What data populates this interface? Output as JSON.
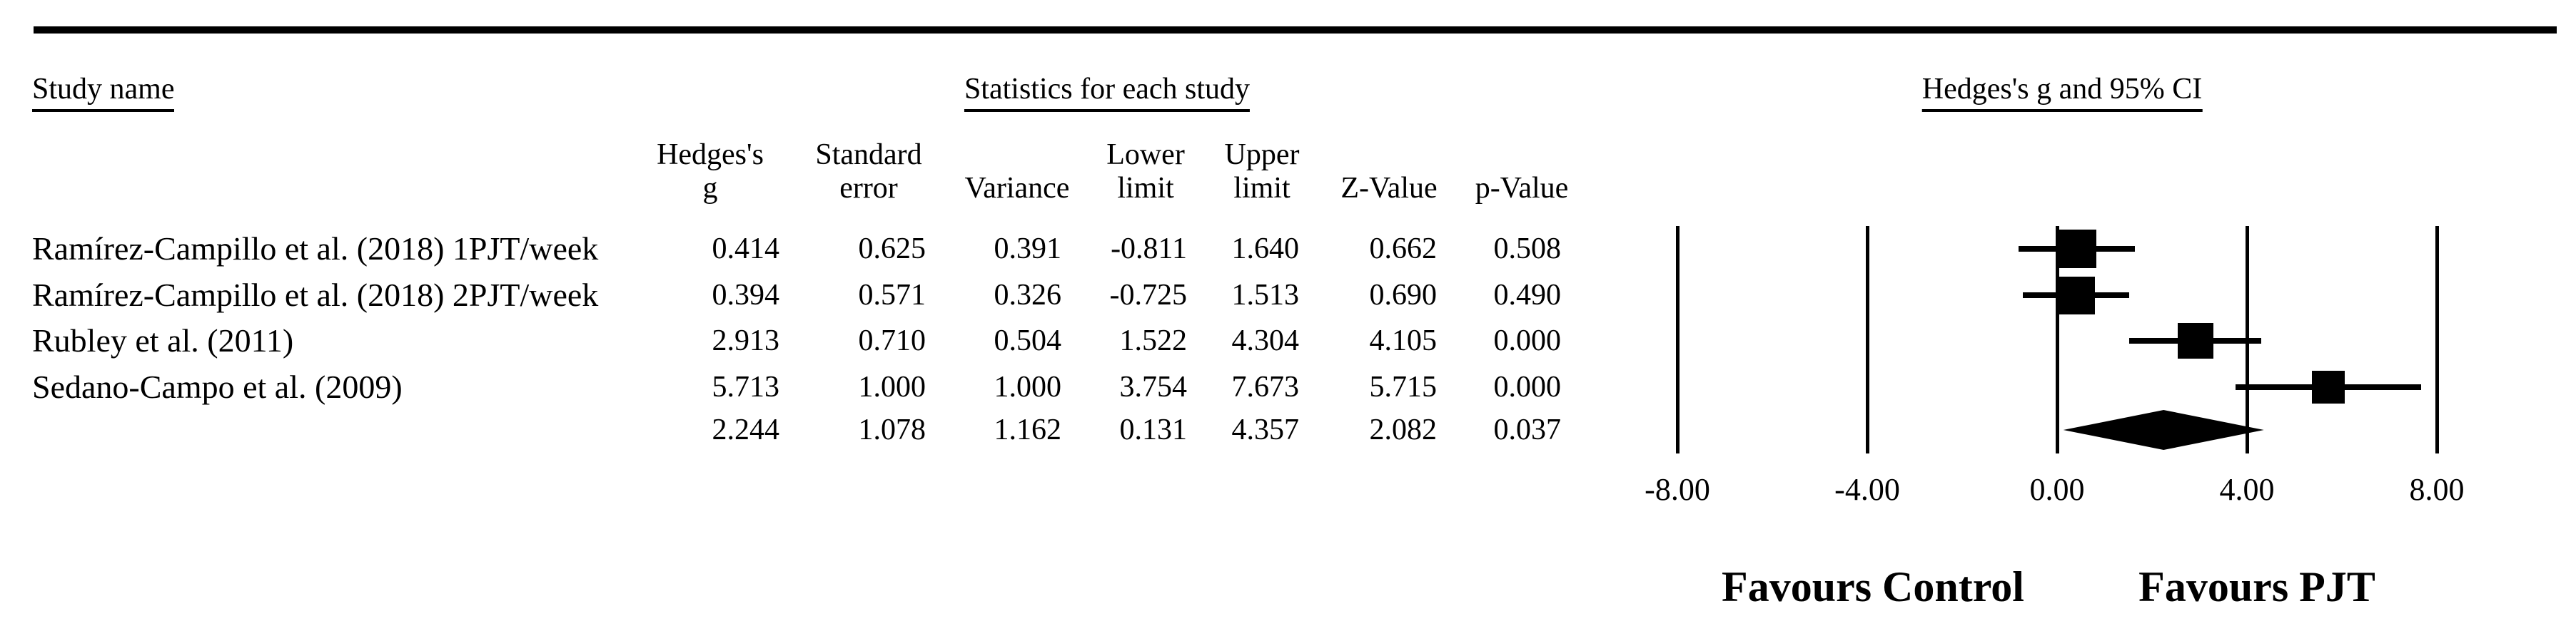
{
  "headers": {
    "study_name": "Study name",
    "statistics": "Statistics for each study",
    "ci": "Hedges's g and 95% CI"
  },
  "col_headers": {
    "g1": "Hedges's",
    "g2": "g",
    "se1": "Standard",
    "se2": "error",
    "var2": "Variance",
    "ll1": "Lower",
    "ll2": "limit",
    "ul1": "Upper",
    "ul2": "limit",
    "z2": "Z-Value",
    "p2": "p-Value"
  },
  "rows": [
    {
      "name": "Ramírez-Campillo et al. (2018) 1PJT/week",
      "g": "0.414",
      "se": "0.625",
      "var": "0.391",
      "ll": "-0.811",
      "ul": "1.640",
      "z": "0.662",
      "p": "0.508"
    },
    {
      "name": "Ramírez-Campillo et al. (2018) 2PJT/week",
      "g": "0.394",
      "se": "0.571",
      "var": "0.326",
      "ll": "-0.725",
      "ul": "1.513",
      "z": "0.690",
      "p": "0.490"
    },
    {
      "name": "Rubley et al. (2011)",
      "g": "2.913",
      "se": "0.710",
      "var": "0.504",
      "ll": "1.522",
      "ul": "4.304",
      "z": "4.105",
      "p": "0.000"
    },
    {
      "name": "Sedano-Campo et al. (2009)",
      "g": "5.713",
      "se": "1.000",
      "var": "1.000",
      "ll": "3.754",
      "ul": "7.673",
      "z": "5.715",
      "p": "0.000"
    },
    {
      "name": "",
      "g": "2.244",
      "se": "1.078",
      "var": "1.162",
      "ll": "0.131",
      "ul": "4.357",
      "z": "2.082",
      "p": "0.037"
    }
  ],
  "chart_data": {
    "type": "forest",
    "title": "Hedges's g and 95% CI",
    "effect_measure": "Hedges's g",
    "xlim": [
      -8,
      8
    ],
    "grid": true,
    "marker": "square",
    "overall_marker": "diamond",
    "ticks": [
      {
        "value": -8,
        "label": "-8.00"
      },
      {
        "value": -4,
        "label": "-4.00"
      },
      {
        "value": 0,
        "label": "0.00"
      },
      {
        "value": 4,
        "label": "4.00"
      },
      {
        "value": 8,
        "label": "8.00"
      }
    ],
    "studies": [
      {
        "name": "Ramírez-Campillo et al. (2018) 1PJT/week",
        "g": 0.414,
        "se": 0.625,
        "variance": 0.391,
        "lower": -0.811,
        "upper": 1.64,
        "z": 0.662,
        "p": 0.508
      },
      {
        "name": "Ramírez-Campillo et al. (2018) 2PJT/week",
        "g": 0.394,
        "se": 0.571,
        "variance": 0.326,
        "lower": -0.725,
        "upper": 1.513,
        "z": 0.69,
        "p": 0.49
      },
      {
        "name": "Rubley et al. (2011)",
        "g": 2.913,
        "se": 0.71,
        "variance": 0.504,
        "lower": 1.522,
        "upper": 4.304,
        "z": 4.105,
        "p": 0.0
      },
      {
        "name": "Sedano-Campo et al. (2009)",
        "g": 5.713,
        "se": 1.0,
        "variance": 1.0,
        "lower": 3.754,
        "upper": 7.673,
        "z": 5.715,
        "p": 0.0
      }
    ],
    "overall": {
      "g": 2.244,
      "se": 1.078,
      "variance": 1.162,
      "lower": 0.131,
      "upper": 4.357,
      "z": 2.082,
      "p": 0.037
    },
    "annotations": {
      "left": "Favours Control",
      "right": "Favours PJT"
    }
  }
}
